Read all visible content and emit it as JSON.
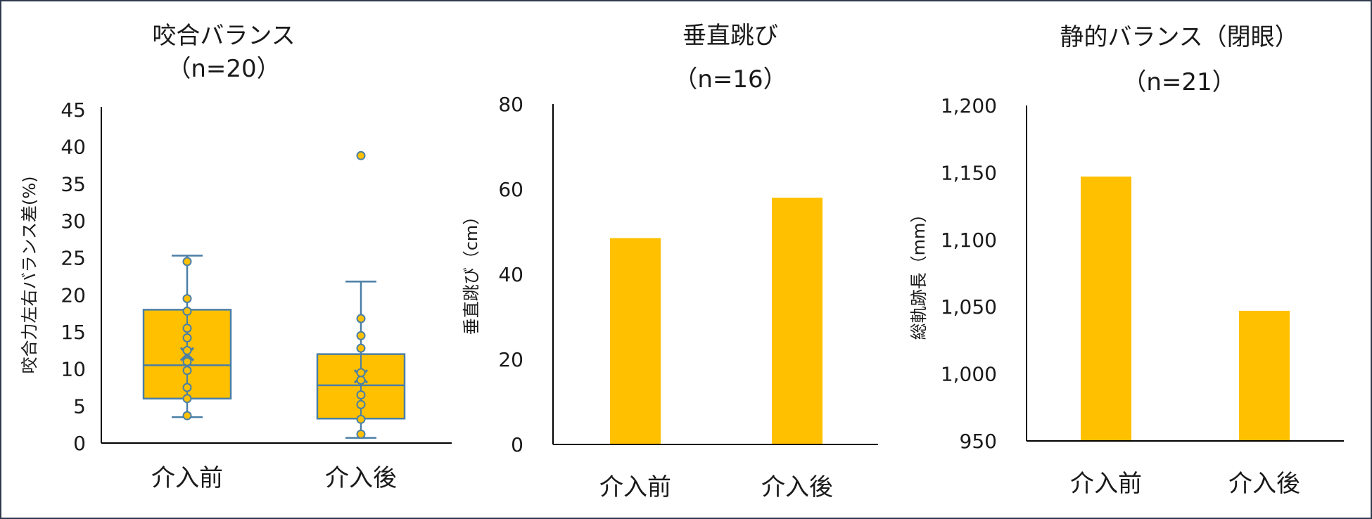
{
  "colors": {
    "bar": "#FFC000",
    "box_stroke": "#4A7FA6",
    "axis": "#000000"
  },
  "chart_data": [
    {
      "type": "box",
      "title": [
        "咬合バランス",
        "（n=20）"
      ],
      "ylabel": "咬合力左右バランス差(%)",
      "ylim": [
        0,
        45
      ],
      "yticks": [
        "0",
        "5",
        "10",
        "15",
        "20",
        "25",
        "30",
        "35",
        "40",
        "45"
      ],
      "categories": [
        "介入前",
        "介入後"
      ],
      "boxes": [
        {
          "min": 3.5,
          "q1": 6,
          "median": 10.5,
          "q3": 18,
          "max": 25.3,
          "mean": 12,
          "points": [
            3.7,
            6,
            7.5,
            9.8,
            11,
            12.5,
            14.2,
            15.5,
            17.8,
            19.5,
            24.5
          ]
        },
        {
          "min": 0.7,
          "q1": 3.3,
          "median": 7.8,
          "q3": 12,
          "max": 21.8,
          "mean": 9,
          "points": [
            1.2,
            3.2,
            5.2,
            6.5,
            8.5,
            9.5,
            12.8,
            14.5,
            16.8,
            38.8
          ],
          "outliers": [
            38.8
          ]
        }
      ]
    },
    {
      "type": "bar",
      "title": [
        "垂直跳び",
        "（n=16）"
      ],
      "ylabel": "垂直跳び（cm）",
      "ylim": [
        0,
        80
      ],
      "yticks": [
        "0",
        "20",
        "40",
        "60",
        "80"
      ],
      "categories": [
        "介入前",
        "介入後"
      ],
      "values": [
        48.5,
        58
      ]
    },
    {
      "type": "bar",
      "title": [
        "静的バランス（閉眼）",
        "（n=21）"
      ],
      "ylabel": "総軌跡長（mm）",
      "ylim": [
        950,
        1200
      ],
      "yticks": [
        "950",
        "1,000",
        "1,050",
        "1,100",
        "1,150",
        "1,200"
      ],
      "categories": [
        "介入前",
        "介入後"
      ],
      "values": [
        1147,
        1047
      ]
    }
  ]
}
